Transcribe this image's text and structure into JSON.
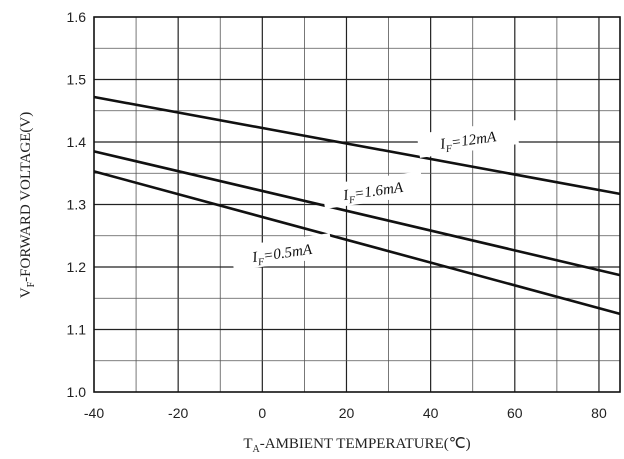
{
  "chart_data": {
    "type": "line",
    "title": "",
    "xlabel": {
      "main": "T",
      "sub": "A",
      "rest": "-AMBIENT TEMPERATURE(℃)"
    },
    "ylabel": {
      "main": "V",
      "sub": "F",
      "rest": "-FORWARD VOLTAGE(V)"
    },
    "xlim": [
      -40,
      85
    ],
    "ylim": [
      1.0,
      1.6
    ],
    "x_ticks": [
      "-40",
      "-20",
      "0",
      "20",
      "40",
      "60",
      "80"
    ],
    "y_ticks": [
      "1.0",
      "1.1",
      "1.2",
      "1.3",
      "1.4",
      "1.5",
      "1.6"
    ],
    "grid": true,
    "series": [
      {
        "name": {
          "main": "I",
          "sub": "F",
          "rest": "=12mA"
        },
        "x": [
          -40,
          85
        ],
        "y": [
          1.472,
          1.317
        ]
      },
      {
        "name": {
          "main": "I",
          "sub": "F",
          "rest": "=1.6mA"
        },
        "x": [
          -40,
          85
        ],
        "y": [
          1.385,
          1.187
        ]
      },
      {
        "name": {
          "main": "I",
          "sub": "F",
          "rest": "=0.5mA"
        },
        "x": [
          -40,
          85
        ],
        "y": [
          1.353,
          1.125
        ]
      }
    ]
  }
}
